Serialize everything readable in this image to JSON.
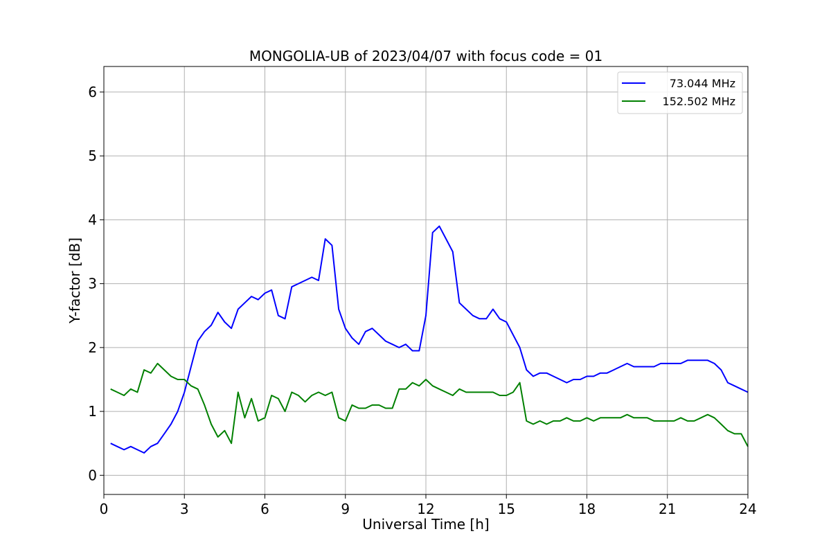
{
  "chart_data": {
    "type": "line",
    "title": "MONGOLIA-UB of 2023/04/07 with focus code = 01",
    "xlabel": "Universal Time [h]",
    "ylabel": "Y-factor [dB]",
    "xlim": [
      0,
      24
    ],
    "ylim": [
      -0.3,
      6.4
    ],
    "xticks": [
      0,
      3,
      6,
      9,
      12,
      15,
      18,
      21,
      24
    ],
    "yticks": [
      0,
      1,
      2,
      3,
      4,
      5,
      6
    ],
    "grid": true,
    "legend_position": "top-right",
    "series": [
      {
        "name": "73.044 MHz",
        "color": "#0000ff",
        "x": [
          0.25,
          0.5,
          0.75,
          1.0,
          1.25,
          1.5,
          1.75,
          2.0,
          2.25,
          2.5,
          2.75,
          3.0,
          3.25,
          3.5,
          3.75,
          4.0,
          4.25,
          4.5,
          4.75,
          5.0,
          5.25,
          5.5,
          5.75,
          6.0,
          6.25,
          6.5,
          6.75,
          7.0,
          7.25,
          7.5,
          7.75,
          8.0,
          8.25,
          8.5,
          8.75,
          9.0,
          9.25,
          9.5,
          9.75,
          10.0,
          10.25,
          10.5,
          10.75,
          11.0,
          11.25,
          11.5,
          11.75,
          12.0,
          12.25,
          12.5,
          12.75,
          13.0,
          13.25,
          13.5,
          13.75,
          14.0,
          14.25,
          14.5,
          14.75,
          15.0,
          15.25,
          15.5,
          15.75,
          16.0,
          16.25,
          16.5,
          16.75,
          17.0,
          17.25,
          17.5,
          17.75,
          18.0,
          18.25,
          18.5,
          18.75,
          19.0,
          19.25,
          19.5,
          19.75,
          20.0,
          20.25,
          20.5,
          20.75,
          21.0,
          21.25,
          21.5,
          21.75,
          22.0,
          22.25,
          22.5,
          22.75,
          23.0,
          23.25,
          23.5,
          23.75,
          24.0
        ],
        "y": [
          0.5,
          0.45,
          0.4,
          0.45,
          0.4,
          0.35,
          0.45,
          0.5,
          0.65,
          0.8,
          1.0,
          1.3,
          1.7,
          2.1,
          2.25,
          2.35,
          2.55,
          2.4,
          2.3,
          2.6,
          2.7,
          2.8,
          2.75,
          2.85,
          2.9,
          2.5,
          2.45,
          2.95,
          3.0,
          3.05,
          3.1,
          3.05,
          3.7,
          3.6,
          2.6,
          2.3,
          2.15,
          2.05,
          2.25,
          2.3,
          2.2,
          2.1,
          2.05,
          2.0,
          2.05,
          1.95,
          1.95,
          2.5,
          3.8,
          3.9,
          3.7,
          3.5,
          2.7,
          2.6,
          2.5,
          2.45,
          2.45,
          2.6,
          2.45,
          2.4,
          2.2,
          2.0,
          1.65,
          1.55,
          1.6,
          1.6,
          1.55,
          1.5,
          1.45,
          1.5,
          1.5,
          1.55,
          1.55,
          1.6,
          1.6,
          1.65,
          1.7,
          1.75,
          1.7,
          1.7,
          1.7,
          1.7,
          1.75,
          1.75,
          1.75,
          1.75,
          1.8,
          1.8,
          1.8,
          1.8,
          1.75,
          1.65,
          1.45,
          1.4,
          1.35,
          1.3
        ]
      },
      {
        "name": "152.502 MHz",
        "color": "#008000",
        "x": [
          0.25,
          0.5,
          0.75,
          1.0,
          1.25,
          1.5,
          1.75,
          2.0,
          2.25,
          2.5,
          2.75,
          3.0,
          3.25,
          3.5,
          3.75,
          4.0,
          4.25,
          4.5,
          4.75,
          5.0,
          5.25,
          5.5,
          5.75,
          6.0,
          6.25,
          6.5,
          6.75,
          7.0,
          7.25,
          7.5,
          7.75,
          8.0,
          8.25,
          8.5,
          8.75,
          9.0,
          9.25,
          9.5,
          9.75,
          10.0,
          10.25,
          10.5,
          10.75,
          11.0,
          11.25,
          11.5,
          11.75,
          12.0,
          12.25,
          12.5,
          12.75,
          13.0,
          13.25,
          13.5,
          13.75,
          14.0,
          14.25,
          14.5,
          14.75,
          15.0,
          15.25,
          15.5,
          15.75,
          16.0,
          16.25,
          16.5,
          16.75,
          17.0,
          17.25,
          17.5,
          17.75,
          18.0,
          18.25,
          18.5,
          18.75,
          19.0,
          19.25,
          19.5,
          19.75,
          20.0,
          20.25,
          20.5,
          20.75,
          21.0,
          21.25,
          21.5,
          21.75,
          22.0,
          22.25,
          22.5,
          22.75,
          23.0,
          23.25,
          23.5,
          23.75,
          24.0
        ],
        "y": [
          1.35,
          1.3,
          1.25,
          1.35,
          1.3,
          1.65,
          1.6,
          1.75,
          1.65,
          1.55,
          1.5,
          1.5,
          1.4,
          1.35,
          1.1,
          0.8,
          0.6,
          0.7,
          0.5,
          1.3,
          0.9,
          1.2,
          0.85,
          0.9,
          1.25,
          1.2,
          1.0,
          1.3,
          1.25,
          1.15,
          1.25,
          1.3,
          1.25,
          1.3,
          0.9,
          0.85,
          1.1,
          1.05,
          1.05,
          1.1,
          1.1,
          1.05,
          1.05,
          1.35,
          1.35,
          1.45,
          1.4,
          1.5,
          1.4,
          1.35,
          1.3,
          1.25,
          1.35,
          1.3,
          1.3,
          1.3,
          1.3,
          1.3,
          1.25,
          1.25,
          1.3,
          1.45,
          0.85,
          0.8,
          0.85,
          0.8,
          0.85,
          0.85,
          0.9,
          0.85,
          0.85,
          0.9,
          0.85,
          0.9,
          0.9,
          0.9,
          0.9,
          0.95,
          0.9,
          0.9,
          0.9,
          0.85,
          0.85,
          0.85,
          0.85,
          0.9,
          0.85,
          0.85,
          0.9,
          0.95,
          0.9,
          0.8,
          0.7,
          0.65,
          0.65,
          0.45
        ]
      }
    ]
  }
}
